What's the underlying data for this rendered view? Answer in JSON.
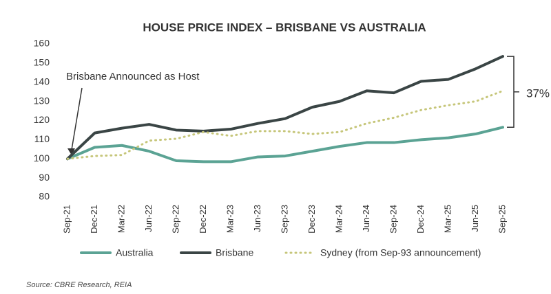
{
  "chart_data": {
    "type": "line",
    "title": "HOUSE PRICE INDEX – BRISBANE VS AUSTRALIA",
    "categories": [
      "Sep-21",
      "Dec-21",
      "Mar-22",
      "Jun-22",
      "Sep-22",
      "Dec-22",
      "Mar-23",
      "Jun-23",
      "Sep-23",
      "Dec-23",
      "Mar-24",
      "Jun-24",
      "Sep-24",
      "Dec-24",
      "Mar-25",
      "Jun-25",
      "Sep-25"
    ],
    "series": [
      {
        "name": "Australia",
        "color": "#5ba394",
        "style": "solid",
        "values": [
          100,
          106,
          107,
          104,
          99,
          98.5,
          98.5,
          101,
          101.5,
          104,
          106.5,
          108.5,
          108.5,
          110,
          111,
          113,
          116.5
        ]
      },
      {
        "name": "Brisbane",
        "color": "#3a4545",
        "style": "solid",
        "values": [
          100,
          113.5,
          116,
          118,
          115,
          114.5,
          115.5,
          118.5,
          121,
          127,
          130,
          135.5,
          134.5,
          140.5,
          141.5,
          147,
          153.5
        ]
      },
      {
        "name": "Sydney (from Sep-93 announcement)",
        "color": "#c6c67a",
        "style": "dotted",
        "values": [
          100,
          101.5,
          102,
          109.5,
          110.5,
          114,
          112,
          114.5,
          114.5,
          113,
          114,
          118.5,
          121.5,
          125.5,
          128,
          130,
          135.5
        ]
      }
    ],
    "ylim": [
      80,
      160
    ],
    "yticks": [
      80,
      90,
      100,
      110,
      120,
      130,
      140,
      150,
      160
    ],
    "grid": false,
    "annotations": [
      "Brisbane Announced as Host",
      "37%"
    ],
    "source": "Source: CBRE Research, REIA"
  }
}
